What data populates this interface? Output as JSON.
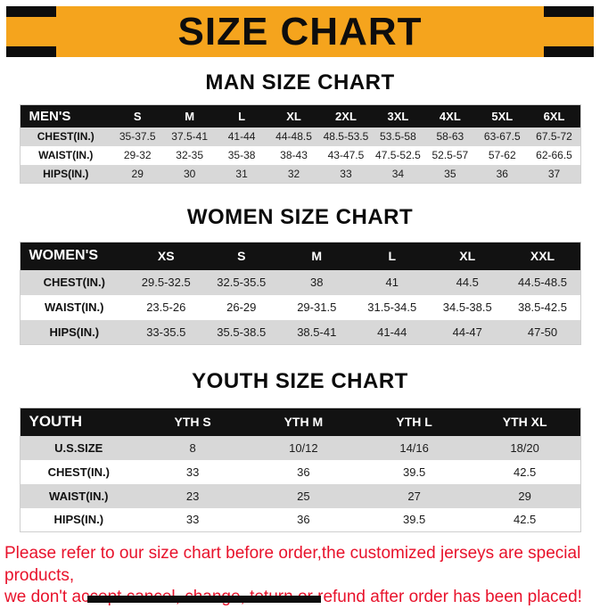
{
  "colors": {
    "banner_bg": "#F5A41D",
    "header_row_bg": "#121212",
    "stripe_row_bg": "#D8D8D8",
    "footer_text": "#E8122B"
  },
  "banner": {
    "title": "SIZE CHART"
  },
  "sections": [
    {
      "id": "men",
      "heading": "MAN SIZE CHART",
      "table": {
        "headers": [
          "MEN'S",
          "S",
          "M",
          "L",
          "XL",
          "2XL",
          "3XL",
          "4XL",
          "5XL",
          "6XL"
        ],
        "rows": [
          [
            "CHEST(IN.)",
            "35-37.5",
            "37.5-41",
            "41-44",
            "44-48.5",
            "48.5-53.5",
            "53.5-58",
            "58-63",
            "63-67.5",
            "67.5-72"
          ],
          [
            "WAIST(IN.)",
            "29-32",
            "32-35",
            "35-38",
            "38-43",
            "43-47.5",
            "47.5-52.5",
            "52.5-57",
            "57-62",
            "62-66.5"
          ],
          [
            "HIPS(IN.)",
            "29",
            "30",
            "31",
            "32",
            "33",
            "34",
            "35",
            "36",
            "37"
          ]
        ]
      }
    },
    {
      "id": "women",
      "heading": "WOMEN SIZE CHART",
      "table": {
        "headers": [
          "WOMEN'S",
          "XS",
          "S",
          "M",
          "L",
          "XL",
          "XXL"
        ],
        "rows": [
          [
            "CHEST(IN.)",
            "29.5-32.5",
            "32.5-35.5",
            "38",
            "41",
            "44.5",
            "44.5-48.5"
          ],
          [
            "WAIST(IN.)",
            "23.5-26",
            "26-29",
            "29-31.5",
            "31.5-34.5",
            "34.5-38.5",
            "38.5-42.5"
          ],
          [
            "HIPS(IN.)",
            "33-35.5",
            "35.5-38.5",
            "38.5-41",
            "41-44",
            "44-47",
            "47-50"
          ]
        ]
      }
    },
    {
      "id": "youth",
      "heading": "YOUTH SIZE CHART",
      "table": {
        "headers": [
          "YOUTH",
          "YTH S",
          "YTH M",
          "YTH L",
          "YTH XL"
        ],
        "rows": [
          [
            "U.S.SIZE",
            "8",
            "10/12",
            "14/16",
            "18/20"
          ],
          [
            "CHEST(IN.)",
            "33",
            "36",
            "39.5",
            "42.5"
          ],
          [
            "WAIST(IN.)",
            "23",
            "25",
            "27",
            "29"
          ],
          [
            "HIPS(IN.)",
            "33",
            "36",
            "39.5",
            "42.5"
          ]
        ]
      }
    }
  ],
  "footer": {
    "line1": "Please refer to our size chart before order,the customized jerseys are special products,",
    "line2": "we don't accept cancel, change, teturn or refund after order has been placed!"
  }
}
